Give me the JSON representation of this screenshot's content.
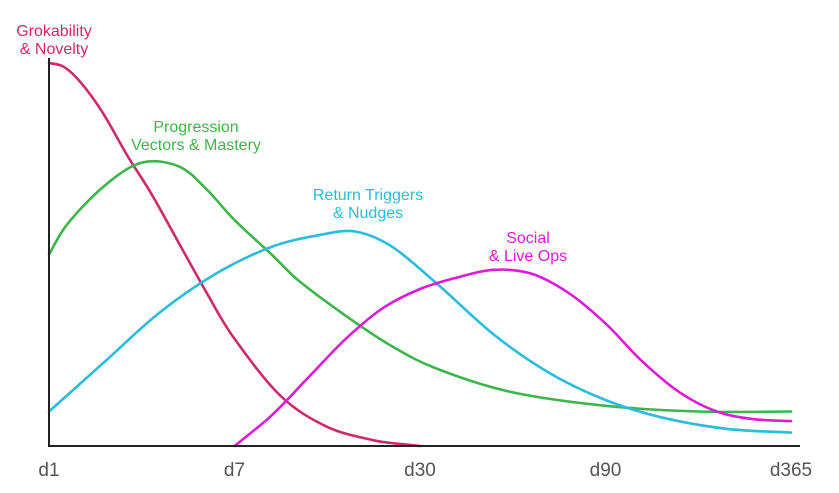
{
  "chart_data": {
    "type": "line",
    "xlabel": "",
    "ylabel": "",
    "categories": [
      "d1",
      "d7",
      "d30",
      "d90",
      "d365"
    ],
    "x_positions": [
      0,
      1,
      2,
      3,
      4
    ],
    "grid": false,
    "legend": "inline labels near curves",
    "series": [
      {
        "name": "Grokability & Novelty",
        "label_lines": [
          "Grokability",
          "& Novelty"
        ],
        "color": "#cc2a6e",
        "points": [
          [
            0,
            100
          ],
          [
            0.08,
            99
          ],
          [
            0.17,
            95
          ],
          [
            0.29,
            87
          ],
          [
            0.42,
            76
          ],
          [
            0.55,
            66
          ],
          [
            0.7,
            53
          ],
          [
            0.85,
            40
          ],
          [
            1,
            28
          ],
          [
            1.25,
            13
          ],
          [
            1.5,
            5
          ],
          [
            1.75,
            1.5
          ],
          [
            1.9,
            0.5
          ],
          [
            2,
            0
          ]
        ]
      },
      {
        "name": "Progression Vectors & Mastery",
        "label_lines": [
          "Progression",
          "Vectors & Mastery"
        ],
        "color": "#3cb54a",
        "points": [
          [
            0,
            50
          ],
          [
            0.1,
            58
          ],
          [
            0.3,
            68
          ],
          [
            0.5,
            74
          ],
          [
            0.7,
            73
          ],
          [
            0.85,
            67
          ],
          [
            1,
            59
          ],
          [
            1.2,
            50
          ],
          [
            1.35,
            43
          ],
          [
            1.6,
            34
          ],
          [
            1.85,
            26
          ],
          [
            2.1,
            20
          ],
          [
            2.5,
            14
          ],
          [
            3,
            10.5
          ],
          [
            3.5,
            9
          ],
          [
            4,
            9
          ]
        ]
      },
      {
        "name": "Return Triggers & Nudges",
        "label_lines": [
          "Return Triggers",
          "& Nudges"
        ],
        "color": "#2bbbdb",
        "points": [
          [
            0,
            9
          ],
          [
            0.3,
            22
          ],
          [
            0.6,
            35
          ],
          [
            0.9,
            45
          ],
          [
            1.2,
            52
          ],
          [
            1.45,
            55
          ],
          [
            1.65,
            56
          ],
          [
            1.85,
            52
          ],
          [
            2.1,
            42
          ],
          [
            2.4,
            29
          ],
          [
            2.7,
            19
          ],
          [
            3,
            12
          ],
          [
            3.3,
            7.5
          ],
          [
            3.65,
            4.5
          ],
          [
            4,
            3.5
          ]
        ]
      },
      {
        "name": "Social & Live Ops",
        "label_lines": [
          "Social",
          "& Live Ops"
        ],
        "color": "#dd1ad6",
        "points": [
          [
            1,
            0
          ],
          [
            1.2,
            8
          ],
          [
            1.4,
            18
          ],
          [
            1.6,
            28
          ],
          [
            1.8,
            36
          ],
          [
            2,
            41
          ],
          [
            2.2,
            44
          ],
          [
            2.4,
            46
          ],
          [
            2.6,
            45
          ],
          [
            2.8,
            40
          ],
          [
            3,
            32
          ],
          [
            3.2,
            22
          ],
          [
            3.4,
            14
          ],
          [
            3.6,
            9
          ],
          [
            3.8,
            7
          ],
          [
            4,
            6.5
          ]
        ]
      }
    ],
    "ylim": [
      0,
      100
    ],
    "xlim": [
      0,
      4
    ]
  }
}
